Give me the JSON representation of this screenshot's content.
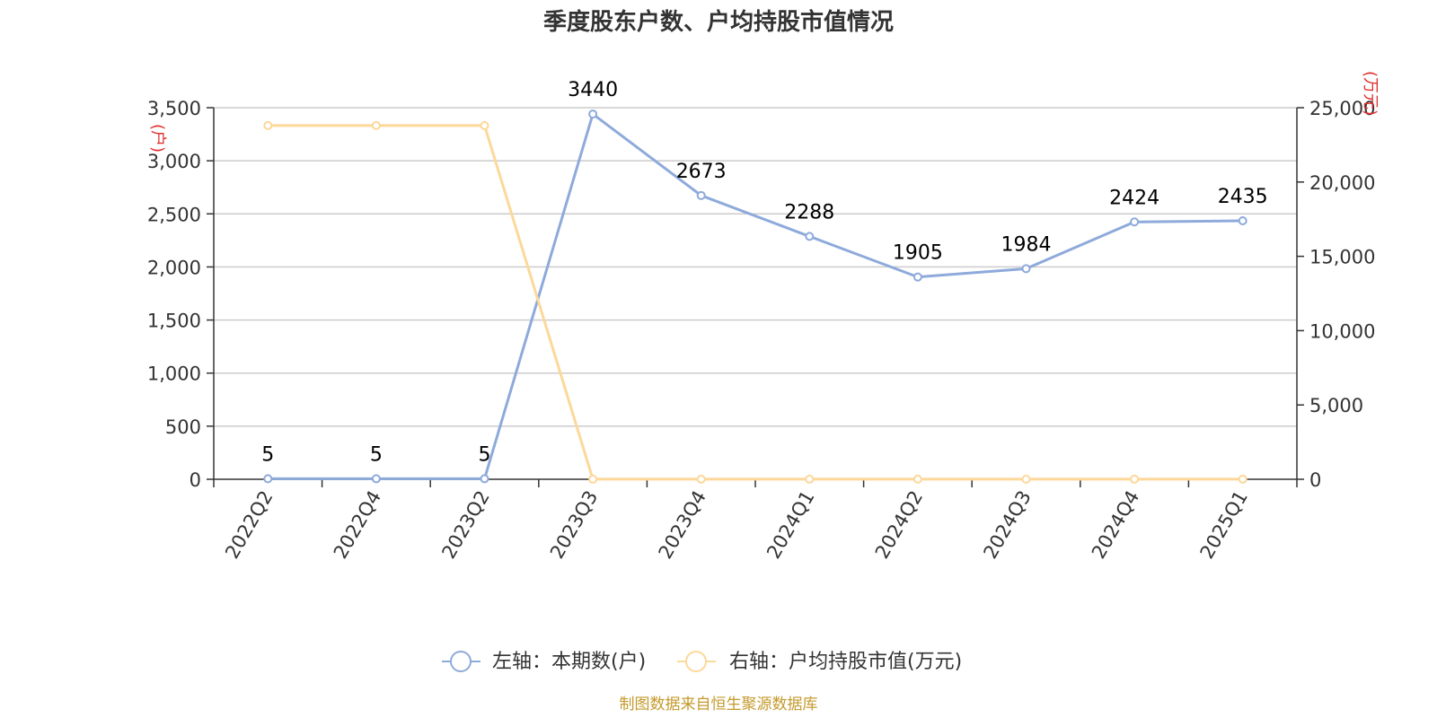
{
  "chart_data": {
    "type": "line",
    "title": "季度股东户数、户均持股市值情况",
    "categories": [
      "2022Q2",
      "2022Q4",
      "2023Q2",
      "2023Q3",
      "2023Q4",
      "2024Q1",
      "2024Q2",
      "2024Q3",
      "2024Q4",
      "2025Q1"
    ],
    "y_left": {
      "unit": "(户)",
      "range": [
        0,
        3500
      ],
      "ticks": [
        "0",
        "500",
        "1,000",
        "1,500",
        "2,000",
        "2,500",
        "3,000",
        "3,500"
      ]
    },
    "y_right": {
      "unit": "(万元)",
      "range": [
        0,
        25000
      ],
      "ticks": [
        "0",
        "5,000",
        "10,000",
        "15,000",
        "20,000",
        "25,000"
      ]
    },
    "series": [
      {
        "name": "左轴：本期数(户)",
        "axis": "left",
        "color": "#8eaadb",
        "values": [
          5,
          5,
          5,
          3440,
          2673,
          2288,
          1905,
          1984,
          2424,
          2435
        ],
        "labels": [
          "5",
          "5",
          "5",
          "3440",
          "2673",
          "2288",
          "1905",
          "1984",
          "2424",
          "2435"
        ]
      },
      {
        "name": "右轴：户均持股市值(万元)",
        "axis": "right",
        "color": "#fcd89a",
        "values": [
          23800,
          23800,
          23800,
          5,
          5,
          5,
          5,
          5,
          5,
          5
        ]
      }
    ],
    "grid": true,
    "legend_position": "bottom-center",
    "source": "制图数据来自恒生聚源数据库"
  }
}
